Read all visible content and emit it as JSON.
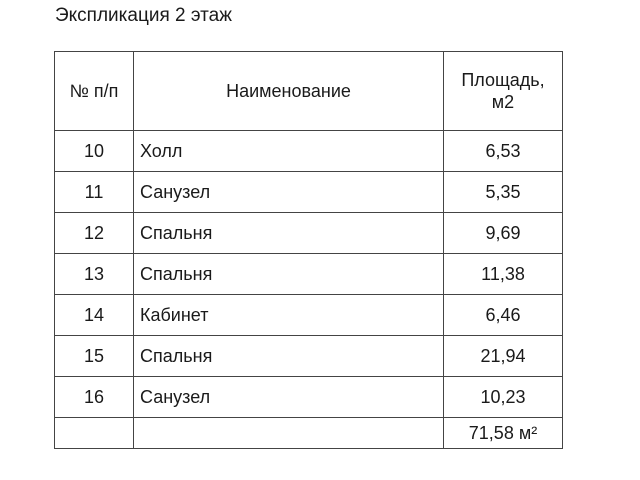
{
  "title": "Экспликация 2 этаж",
  "table": {
    "headers": {
      "num": "№ п/п",
      "name": "Наименование",
      "area_line1": "Площадь,",
      "area_line2": "м2"
    },
    "rows": [
      {
        "num": "10",
        "name": "Холл",
        "area": "6,53"
      },
      {
        "num": "11",
        "name": "Санузел",
        "area": "5,35"
      },
      {
        "num": "12",
        "name": "Спальня",
        "area": "9,69"
      },
      {
        "num": "13",
        "name": "Спальня",
        "area": "11,38"
      },
      {
        "num": "14",
        "name": "Кабинет",
        "area": "6,46"
      },
      {
        "num": "15",
        "name": "Спальня",
        "area": "21,94"
      },
      {
        "num": "16",
        "name": "Санузел",
        "area": "10,23"
      }
    ],
    "total": "71,58 м²"
  }
}
